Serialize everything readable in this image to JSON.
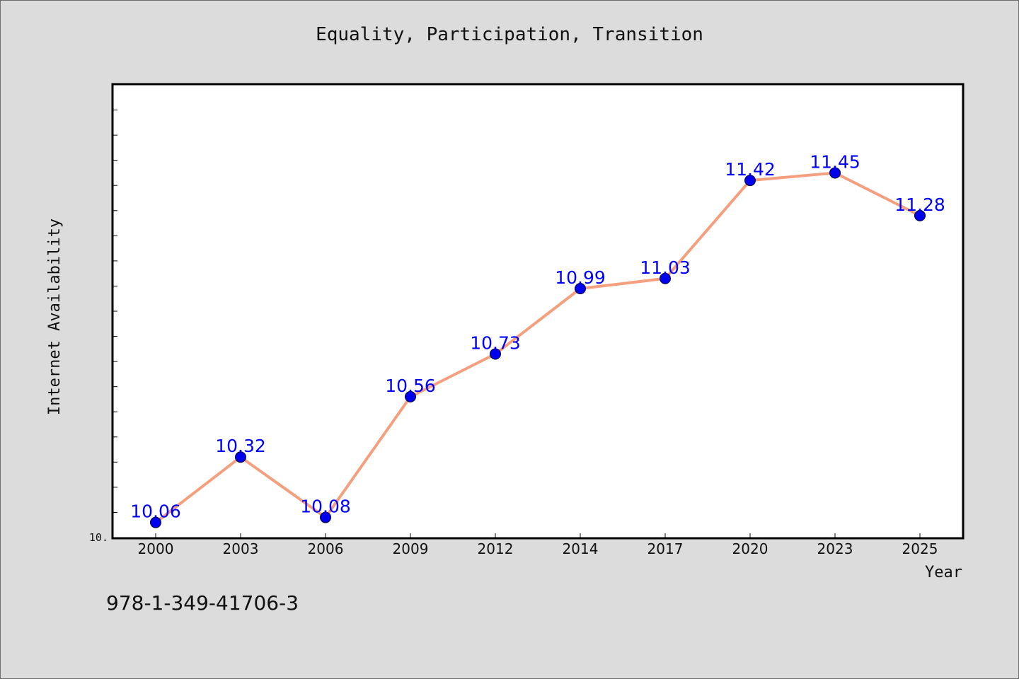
{
  "chart_data": {
    "type": "line",
    "title": "Equality, Participation, Transition",
    "xlabel": "Year",
    "ylabel": "Internet Availability",
    "categories": [
      "2000",
      "2003",
      "2006",
      "2009",
      "2012",
      "2014",
      "2017",
      "2020",
      "2023",
      "2025"
    ],
    "series": [
      {
        "values": [
          10.06,
          10.32,
          10.08,
          10.56,
          10.73,
          10.99,
          11.03,
          11.42,
          11.45,
          11.28
        ]
      }
    ],
    "data_labels": [
      "10.06",
      "10.32",
      "10.08",
      "10.56",
      "10.73",
      "10.99",
      "11.03",
      "11.42",
      "11.45",
      "11.28"
    ],
    "y_tick_label": "10.",
    "ylim": [
      10.0,
      11.8
    ],
    "y_minor_tick_step": 0.1,
    "grid": false,
    "legend": "none",
    "colors": {
      "line": "#f4a07e",
      "marker": "#0000ee",
      "data_label": "#0000ff",
      "plot_bg": "#ffffff",
      "page_bg": "#dcdcdc"
    }
  },
  "footer": {
    "isbn": "978-1-349-41706-3"
  }
}
